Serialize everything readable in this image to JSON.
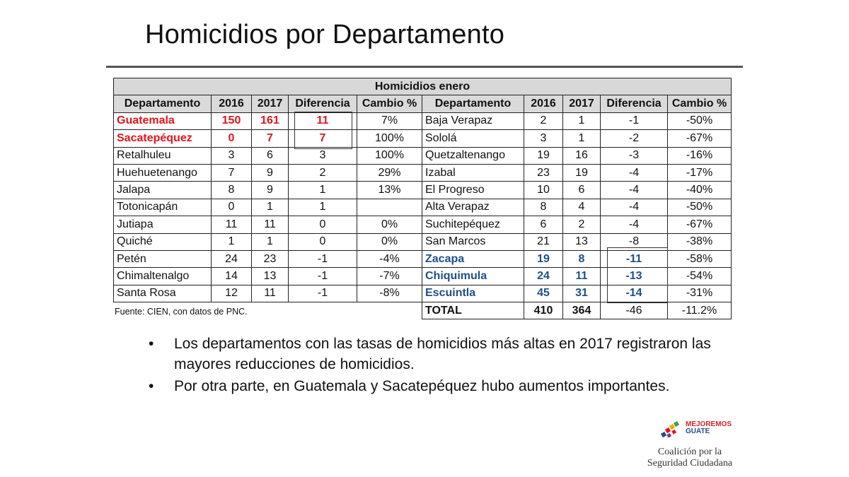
{
  "title": "Homicidios por Departamento",
  "table": {
    "main_header": "Homicidios enero",
    "columns": [
      "Departamento",
      "2016",
      "2017",
      "Diferencia",
      "Cambio %"
    ],
    "left_rows": [
      {
        "dept": "Guatemala",
        "y2016": "150",
        "y2017": "161",
        "diff": "11",
        "change": "7%"
      },
      {
        "dept": "Sacatepéquez",
        "y2016": "0",
        "y2017": "7",
        "diff": "7",
        "change": "100%"
      },
      {
        "dept": "Retalhuleu",
        "y2016": "3",
        "y2017": "6",
        "diff": "3",
        "change": "100%"
      },
      {
        "dept": "Huehuetenango",
        "y2016": "7",
        "y2017": "9",
        "diff": "2",
        "change": "29%"
      },
      {
        "dept": "Jalapa",
        "y2016": "8",
        "y2017": "9",
        "diff": "1",
        "change": "13%"
      },
      {
        "dept": "Totonicapán",
        "y2016": "0",
        "y2017": "1",
        "diff": "1",
        "change": ""
      },
      {
        "dept": "Jutiapa",
        "y2016": "11",
        "y2017": "11",
        "diff": "0",
        "change": "0%"
      },
      {
        "dept": "Quiché",
        "y2016": "1",
        "y2017": "1",
        "diff": "0",
        "change": "0%"
      },
      {
        "dept": "Petén",
        "y2016": "24",
        "y2017": "23",
        "diff": "-1",
        "change": "-4%"
      },
      {
        "dept": "Chimaltenalgo",
        "y2016": "14",
        "y2017": "13",
        "diff": "-1",
        "change": "-7%"
      },
      {
        "dept": "Santa Rosa",
        "y2016": "12",
        "y2017": "11",
        "diff": "-1",
        "change": "-8%"
      }
    ],
    "right_rows": [
      {
        "dept": "Baja Verapaz",
        "y2016": "2",
        "y2017": "1",
        "diff": "-1",
        "change": "-50%"
      },
      {
        "dept": "Sololá",
        "y2016": "3",
        "y2017": "1",
        "diff": "-2",
        "change": "-67%"
      },
      {
        "dept": "Quetzaltenango",
        "y2016": "19",
        "y2017": "16",
        "diff": "-3",
        "change": "-16%"
      },
      {
        "dept": "Izabal",
        "y2016": "23",
        "y2017": "19",
        "diff": "-4",
        "change": "-17%"
      },
      {
        "dept": "El Progreso",
        "y2016": "10",
        "y2017": "6",
        "diff": "-4",
        "change": "-40%"
      },
      {
        "dept": "Alta Verapaz",
        "y2016": "8",
        "y2017": "4",
        "diff": "-4",
        "change": "-50%"
      },
      {
        "dept": "Suchitepéquez",
        "y2016": "6",
        "y2017": "2",
        "diff": "-4",
        "change": "-67%"
      },
      {
        "dept": "San Marcos",
        "y2016": "21",
        "y2017": "13",
        "diff": "-8",
        "change": "-38%"
      },
      {
        "dept": "Zacapa",
        "y2016": "19",
        "y2017": "8",
        "diff": "-11",
        "change": "-58%"
      },
      {
        "dept": "Chiquimula",
        "y2016": "24",
        "y2017": "11",
        "diff": "-13",
        "change": "-54%"
      },
      {
        "dept": "Escuintla",
        "y2016": "45",
        "y2017": "31",
        "diff": "-14",
        "change": "-31%"
      }
    ],
    "total": {
      "dept": "TOTAL",
      "y2016": "410",
      "y2017": "364",
      "diff": "-46",
      "change": "-11.2%"
    },
    "highlight_colors": {
      "increase": "#e5141b",
      "decrease": "#1f4f8a"
    }
  },
  "source": "Fuente: CIEN, con datos de PNC.",
  "bullets": [
    "Los departamentos con las tasas de homicidios más altas en 2017 registraron las mayores reducciones de homicidios.",
    "Por otra parte, en Guatemala y Sacatepéquez hubo aumentos importantes."
  ],
  "logo": {
    "brand_line1": "MEJOREMOS",
    "brand_line2": "GUATE",
    "line1": "Coalición por la",
    "line2": "Seguridad Ciudadana"
  }
}
